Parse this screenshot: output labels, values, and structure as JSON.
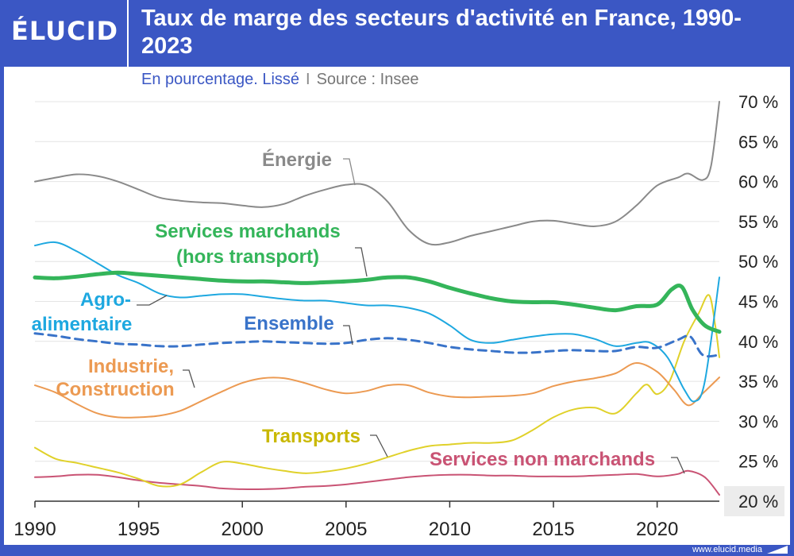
{
  "header": {
    "logo": "ÉLUCID",
    "title": "Taux de marge des secteurs d'activité en France, 1990-2023",
    "subtitle_left": "En pourcentage. Lissé",
    "subtitle_sep": "I",
    "subtitle_right": "Source : Insee",
    "footer": "www.elucid.media"
  },
  "chart_data": {
    "type": "line",
    "title": "Taux de marge des secteurs d'activité en France, 1990-2023",
    "subtitle": "En pourcentage. Lissé",
    "source": "Source : Insee",
    "xlim": [
      1990,
      2023
    ],
    "ylim": [
      20,
      70
    ],
    "x_ticks": [
      1990,
      1995,
      2000,
      2005,
      2010,
      2015,
      2020
    ],
    "y_ticks": [
      20,
      25,
      30,
      35,
      40,
      45,
      50,
      55,
      60,
      65,
      70
    ],
    "y_tick_labels": [
      "20 %",
      "25 %",
      "30 %",
      "35 %",
      "40 %",
      "45 %",
      "50 %",
      "55 %",
      "60 %",
      "65 %",
      "70 %"
    ],
    "grid": "horizontal",
    "series": [
      {
        "name": "Énergie",
        "color": "#8a8a8a",
        "points": [
          [
            1990,
            60
          ],
          [
            1991,
            60.5
          ],
          [
            1992,
            60.9
          ],
          [
            1993,
            60.7
          ],
          [
            1994,
            60
          ],
          [
            1995,
            59
          ],
          [
            1996,
            58
          ],
          [
            1997,
            57.6
          ],
          [
            1998,
            57.4
          ],
          [
            1999,
            57.3
          ],
          [
            2000,
            57
          ],
          [
            2001,
            56.8
          ],
          [
            2002,
            57.2
          ],
          [
            2003,
            58.2
          ],
          [
            2004,
            59
          ],
          [
            2005,
            59.6
          ],
          [
            2006,
            59.5
          ],
          [
            2007,
            57.5
          ],
          [
            2008,
            54
          ],
          [
            2009,
            52.2
          ],
          [
            2010,
            52.4
          ],
          [
            2011,
            53.2
          ],
          [
            2012,
            53.8
          ],
          [
            2013,
            54.4
          ],
          [
            2014,
            55
          ],
          [
            2015,
            55.1
          ],
          [
            2016,
            54.7
          ],
          [
            2017,
            54.4
          ],
          [
            2018,
            55
          ],
          [
            2019,
            57
          ],
          [
            2020,
            59.5
          ],
          [
            2021,
            60.5
          ],
          [
            2021.5,
            61
          ],
          [
            2022.2,
            60.2
          ],
          [
            2022.6,
            62
          ],
          [
            2023,
            70
          ]
        ]
      },
      {
        "name": "Services marchands (hors transport)",
        "color": "#34b55a",
        "points": [
          [
            1990,
            48
          ],
          [
            1991,
            47.9
          ],
          [
            1992,
            48.1
          ],
          [
            1993,
            48.4
          ],
          [
            1994,
            48.6
          ],
          [
            1995,
            48.4
          ],
          [
            1996,
            48.2
          ],
          [
            1997,
            48
          ],
          [
            1998,
            47.8
          ],
          [
            1999,
            47.6
          ],
          [
            2000,
            47.5
          ],
          [
            2001,
            47.5
          ],
          [
            2002,
            47.4
          ],
          [
            2003,
            47.3
          ],
          [
            2004,
            47.4
          ],
          [
            2005,
            47.5
          ],
          [
            2006,
            47.7
          ],
          [
            2007,
            48
          ],
          [
            2008,
            48
          ],
          [
            2009,
            47.5
          ],
          [
            2010,
            46.7
          ],
          [
            2011,
            46
          ],
          [
            2012,
            45.4
          ],
          [
            2013,
            45
          ],
          [
            2014,
            44.9
          ],
          [
            2015,
            44.9
          ],
          [
            2016,
            44.6
          ],
          [
            2017,
            44.2
          ],
          [
            2018,
            43.9
          ],
          [
            2019,
            44.4
          ],
          [
            2020,
            44.6
          ],
          [
            2020.7,
            46.5
          ],
          [
            2021.2,
            46.8
          ],
          [
            2021.7,
            44
          ],
          [
            2022.3,
            42
          ],
          [
            2023,
            41.2
          ]
        ]
      },
      {
        "name": "Agro-alimentaire",
        "color": "#1ea8e0",
        "points": [
          [
            1990,
            52
          ],
          [
            1991,
            52.4
          ],
          [
            1992,
            51.3
          ],
          [
            1993,
            49.8
          ],
          [
            1994,
            48.3
          ],
          [
            1995,
            47.3
          ],
          [
            1996,
            46
          ],
          [
            1997,
            45.5
          ],
          [
            1998,
            45.7
          ],
          [
            1999,
            45.9
          ],
          [
            2000,
            45.9
          ],
          [
            2001,
            45.6
          ],
          [
            2002,
            45.3
          ],
          [
            2003,
            45.1
          ],
          [
            2004,
            45.1
          ],
          [
            2005,
            44.8
          ],
          [
            2006,
            44.5
          ],
          [
            2007,
            44.5
          ],
          [
            2008,
            44.2
          ],
          [
            2009,
            43.5
          ],
          [
            2010,
            42
          ],
          [
            2011,
            40.2
          ],
          [
            2012,
            39.8
          ],
          [
            2013,
            40.2
          ],
          [
            2014,
            40.6
          ],
          [
            2015,
            40.9
          ],
          [
            2016,
            40.9
          ],
          [
            2017,
            40.3
          ],
          [
            2018,
            39.4
          ],
          [
            2019,
            39.8
          ],
          [
            2019.7,
            39.8
          ],
          [
            2020.5,
            38
          ],
          [
            2021.3,
            34
          ],
          [
            2021.8,
            32.5
          ],
          [
            2022.3,
            35
          ],
          [
            2023,
            48
          ]
        ]
      },
      {
        "name": "Ensemble",
        "color": "#3973c9",
        "dashed": true,
        "points": [
          [
            1990,
            41
          ],
          [
            1991,
            40.7
          ],
          [
            1992,
            40.3
          ],
          [
            1993,
            40
          ],
          [
            1994,
            39.7
          ],
          [
            1995,
            39.6
          ],
          [
            1996,
            39.4
          ],
          [
            1997,
            39.4
          ],
          [
            1998,
            39.6
          ],
          [
            1999,
            39.8
          ],
          [
            2000,
            39.9
          ],
          [
            2001,
            40
          ],
          [
            2002,
            39.9
          ],
          [
            2003,
            39.8
          ],
          [
            2004,
            39.7
          ],
          [
            2005,
            39.8
          ],
          [
            2006,
            40.2
          ],
          [
            2007,
            40.4
          ],
          [
            2008,
            40.2
          ],
          [
            2009,
            39.8
          ],
          [
            2010,
            39.3
          ],
          [
            2011,
            39
          ],
          [
            2012,
            38.8
          ],
          [
            2013,
            38.6
          ],
          [
            2014,
            38.6
          ],
          [
            2015,
            38.8
          ],
          [
            2016,
            38.9
          ],
          [
            2017,
            38.8
          ],
          [
            2018,
            38.8
          ],
          [
            2019,
            39.3
          ],
          [
            2020,
            39.2
          ],
          [
            2021,
            40.2
          ],
          [
            2021.6,
            40.6
          ],
          [
            2022.2,
            38.3
          ],
          [
            2023,
            38.3
          ]
        ]
      },
      {
        "name": "Industrie, Construction",
        "color": "#ec9a52",
        "points": [
          [
            1990,
            34.5
          ],
          [
            1991,
            33.6
          ],
          [
            1992,
            32.2
          ],
          [
            1993,
            31
          ],
          [
            1994,
            30.5
          ],
          [
            1995,
            30.5
          ],
          [
            1996,
            30.7
          ],
          [
            1997,
            31.3
          ],
          [
            1998,
            32.5
          ],
          [
            1999,
            33.7
          ],
          [
            2000,
            34.8
          ],
          [
            2001,
            35.4
          ],
          [
            2002,
            35.4
          ],
          [
            2003,
            34.8
          ],
          [
            2004,
            34
          ],
          [
            2005,
            33.5
          ],
          [
            2006,
            33.8
          ],
          [
            2007,
            34.5
          ],
          [
            2008,
            34.5
          ],
          [
            2009,
            33.6
          ],
          [
            2010,
            33.1
          ],
          [
            2011,
            33
          ],
          [
            2012,
            33.1
          ],
          [
            2013,
            33.2
          ],
          [
            2014,
            33.5
          ],
          [
            2015,
            34.4
          ],
          [
            2016,
            35
          ],
          [
            2017,
            35.4
          ],
          [
            2018,
            36
          ],
          [
            2019,
            37.3
          ],
          [
            2020,
            36.2
          ],
          [
            2020.8,
            34
          ],
          [
            2021.5,
            32
          ],
          [
            2022.2,
            33.5
          ],
          [
            2023,
            35.5
          ]
        ]
      },
      {
        "name": "Transports",
        "color": "#e0d12a",
        "points": [
          [
            1990,
            26.7
          ],
          [
            1991,
            25.3
          ],
          [
            1992,
            24.8
          ],
          [
            1993,
            24.2
          ],
          [
            1994,
            23.6
          ],
          [
            1995,
            22.8
          ],
          [
            1996,
            21.9
          ],
          [
            1997,
            22.1
          ],
          [
            1998,
            23.6
          ],
          [
            1999,
            24.9
          ],
          [
            2000,
            24.7
          ],
          [
            2001,
            24.2
          ],
          [
            2002,
            23.8
          ],
          [
            2003,
            23.5
          ],
          [
            2004,
            23.7
          ],
          [
            2005,
            24.1
          ],
          [
            2006,
            24.7
          ],
          [
            2007,
            25.5
          ],
          [
            2008,
            26.3
          ],
          [
            2009,
            26.9
          ],
          [
            2010,
            27.1
          ],
          [
            2011,
            27.3
          ],
          [
            2012,
            27.3
          ],
          [
            2013,
            27.6
          ],
          [
            2014,
            28.9
          ],
          [
            2015,
            30.5
          ],
          [
            2016,
            31.5
          ],
          [
            2017,
            31.7
          ],
          [
            2018,
            31
          ],
          [
            2019,
            33.5
          ],
          [
            2019.5,
            34.6
          ],
          [
            2020,
            33.4
          ],
          [
            2020.6,
            35
          ],
          [
            2021.3,
            40
          ],
          [
            2022,
            43.5
          ],
          [
            2022.5,
            45.8
          ],
          [
            2022.8,
            42
          ],
          [
            2023,
            38
          ]
        ]
      },
      {
        "name": "Services non marchands",
        "color": "#c95374",
        "points": [
          [
            1990,
            23
          ],
          [
            1991,
            23.1
          ],
          [
            1992,
            23.3
          ],
          [
            1993,
            23.3
          ],
          [
            1994,
            23
          ],
          [
            1995,
            22.6
          ],
          [
            1996,
            22.3
          ],
          [
            1997,
            22.1
          ],
          [
            1998,
            21.9
          ],
          [
            1999,
            21.6
          ],
          [
            2000,
            21.5
          ],
          [
            2001,
            21.5
          ],
          [
            2002,
            21.6
          ],
          [
            2003,
            21.8
          ],
          [
            2004,
            21.9
          ],
          [
            2005,
            22.1
          ],
          [
            2006,
            22.4
          ],
          [
            2007,
            22.7
          ],
          [
            2008,
            23
          ],
          [
            2009,
            23.2
          ],
          [
            2010,
            23.3
          ],
          [
            2011,
            23.3
          ],
          [
            2012,
            23.2
          ],
          [
            2013,
            23.2
          ],
          [
            2014,
            23.1
          ],
          [
            2015,
            23.1
          ],
          [
            2016,
            23.1
          ],
          [
            2017,
            23.2
          ],
          [
            2018,
            23.3
          ],
          [
            2019,
            23.4
          ],
          [
            2020,
            23.1
          ],
          [
            2021,
            23.4
          ],
          [
            2021.5,
            23.8
          ],
          [
            2022.3,
            23
          ],
          [
            2023,
            20.8
          ]
        ]
      }
    ],
    "annotations": [
      {
        "text": "Énergie",
        "color": "#8a8a8a",
        "series": "Énergie"
      },
      {
        "text": "Services marchands",
        "color": "#34b55a",
        "series": "Services marchands (hors transport)"
      },
      {
        "text": "(hors transport)",
        "color": "#34b55a",
        "series": "Services marchands (hors transport)"
      },
      {
        "text": "Agro-",
        "color": "#1ea8e0",
        "series": "Agro-alimentaire"
      },
      {
        "text": "alimentaire",
        "color": "#1ea8e0",
        "series": "Agro-alimentaire"
      },
      {
        "text": "Ensemble",
        "color": "#3973c9",
        "series": "Ensemble"
      },
      {
        "text": "Industrie,",
        "color": "#ec9a52",
        "series": "Industrie, Construction"
      },
      {
        "text": "Construction",
        "color": "#ec9a52",
        "series": "Industrie, Construction"
      },
      {
        "text": "Transports",
        "color": "#c9b800",
        "series": "Transports"
      },
      {
        "text": "Services non marchands",
        "color": "#c95374",
        "series": "Services non marchands"
      }
    ]
  }
}
